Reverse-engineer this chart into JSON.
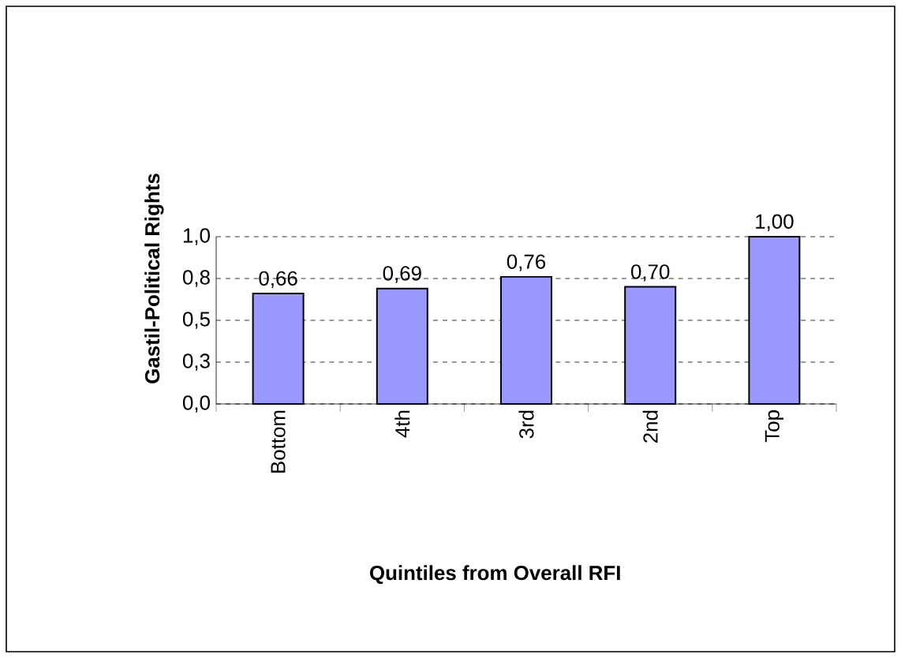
{
  "chart_data": {
    "type": "bar",
    "xlabel": "Quintiles from Overall RFI",
    "ylabel": "Gastil-Political Rights",
    "categories": [
      "Bottom",
      "4th",
      "3rd",
      "2nd",
      "Top"
    ],
    "values": [
      0.66,
      0.69,
      0.76,
      0.7,
      1.0
    ],
    "value_labels": [
      "0,66",
      "0,69",
      "0,76",
      "0,70",
      "1,00"
    ],
    "color": "#9999ff",
    "ylim": [
      0,
      1.0
    ],
    "yticks": [
      {
        "value": 0,
        "label": "0,0"
      },
      {
        "value": 0.25,
        "label": "0,3"
      },
      {
        "value": 0.5,
        "label": "0,5"
      },
      {
        "value": 0.75,
        "label": "0,8"
      },
      {
        "value": 1.0,
        "label": "1,0"
      }
    ],
    "grid": "y",
    "legend": false
  }
}
